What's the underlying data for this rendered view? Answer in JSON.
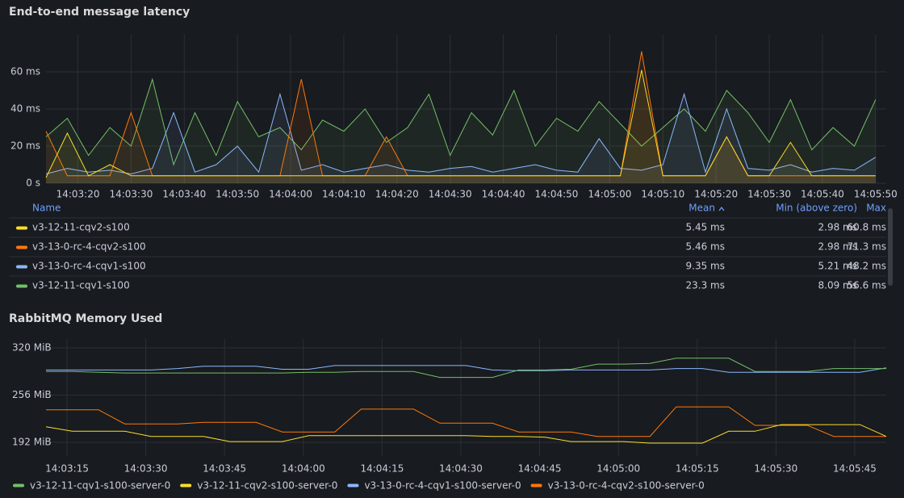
{
  "chart_data": [
    {
      "type": "line",
      "title": "End-to-end message latency",
      "x": [
        "14:03:14",
        "14:03:18",
        "14:03:22",
        "14:03:26",
        "14:03:30",
        "14:03:34",
        "14:03:38",
        "14:03:42",
        "14:03:46",
        "14:03:50",
        "14:03:54",
        "14:03:58",
        "14:04:02",
        "14:04:06",
        "14:04:10",
        "14:04:14",
        "14:04:18",
        "14:04:22",
        "14:04:26",
        "14:04:30",
        "14:04:34",
        "14:04:38",
        "14:04:42",
        "14:04:46",
        "14:04:50",
        "14:04:54",
        "14:04:58",
        "14:05:02",
        "14:05:06",
        "14:05:10",
        "14:05:14",
        "14:05:18",
        "14:05:22",
        "14:05:26",
        "14:05:30",
        "14:05:34",
        "14:05:38",
        "14:05:42",
        "14:05:46",
        "14:05:50"
      ],
      "xlim": [
        "14:03:14",
        "14:05:52"
      ],
      "xticks": [
        "14:03:20",
        "14:03:30",
        "14:03:40",
        "14:03:50",
        "14:04:00",
        "14:04:10",
        "14:04:20",
        "14:04:30",
        "14:04:40",
        "14:04:50",
        "14:05:00",
        "14:05:10",
        "14:05:20",
        "14:05:30",
        "14:05:40",
        "14:05:50"
      ],
      "ylim": [
        0,
        80
      ],
      "yticks": [
        {
          "value": 0,
          "label": "0 s"
        },
        {
          "value": 20,
          "label": "20 ms"
        },
        {
          "value": 40,
          "label": "40 ms"
        },
        {
          "value": 60,
          "label": "60 ms"
        }
      ],
      "grid": true,
      "fill": true,
      "legend_columns": [
        "Name",
        "Mean",
        "Min (above zero)",
        "Max"
      ],
      "series": [
        {
          "name": "v3-12-11-cqv2-s100",
          "color": "#fade2a",
          "legend_values": [
            "5.45 ms",
            "2.98 ms",
            "60.8 ms"
          ],
          "values": [
            3,
            27,
            4,
            10,
            4,
            4,
            4,
            4,
            4,
            4,
            4,
            4,
            4,
            4,
            4,
            4,
            4,
            4,
            4,
            4,
            4,
            4,
            4,
            4,
            4,
            4,
            4,
            4,
            61,
            4,
            4,
            4,
            25,
            4,
            4,
            22,
            4,
            4,
            4,
            4
          ]
        },
        {
          "name": "v3-13-0-rc-4-cqv2-s100",
          "color": "#ff780a",
          "legend_values": [
            "5.46 ms",
            "2.98 ms",
            "71.3 ms"
          ],
          "values": [
            28,
            4,
            4,
            4,
            38,
            4,
            4,
            4,
            4,
            4,
            4,
            4,
            56,
            4,
            4,
            4,
            25,
            4,
            4,
            4,
            4,
            4,
            4,
            4,
            4,
            4,
            4,
            4,
            71,
            4,
            4,
            4,
            25,
            4,
            4,
            4,
            4,
            4,
            4,
            4
          ]
        },
        {
          "name": "v3-13-0-rc-4-cqv1-s100",
          "color": "#8ab8ff",
          "legend_values": [
            "9.35 ms",
            "5.21 ms",
            "48.2 ms"
          ],
          "values": [
            5,
            8,
            6,
            7,
            5,
            8,
            38,
            6,
            10,
            20,
            6,
            48,
            7,
            10,
            6,
            8,
            10,
            7,
            6,
            8,
            9,
            6,
            8,
            10,
            7,
            6,
            24,
            8,
            7,
            10,
            48,
            6,
            40,
            8,
            7,
            10,
            6,
            8,
            7,
            14
          ]
        },
        {
          "name": "v3-12-11-cqv1-s100",
          "color": "#73bf69",
          "legend_values": [
            "23.3 ms",
            "8.09 ms",
            "56.6 ms"
          ],
          "values": [
            25,
            35,
            15,
            30,
            20,
            56,
            10,
            38,
            15,
            44,
            25,
            30,
            18,
            34,
            28,
            40,
            22,
            30,
            48,
            15,
            38,
            26,
            50,
            20,
            35,
            28,
            44,
            32,
            20,
            30,
            40,
            28,
            50,
            38,
            22,
            45,
            18,
            30,
            20,
            45
          ]
        }
      ]
    },
    {
      "type": "line",
      "title": "RabbitMQ Memory Used",
      "x": [
        "14:03:11",
        "14:03:16",
        "14:03:21",
        "14:03:26",
        "14:03:31",
        "14:03:36",
        "14:03:41",
        "14:03:46",
        "14:03:51",
        "14:03:56",
        "14:04:01",
        "14:04:06",
        "14:04:11",
        "14:04:16",
        "14:04:21",
        "14:04:26",
        "14:04:31",
        "14:04:36",
        "14:04:41",
        "14:04:46",
        "14:04:51",
        "14:04:56",
        "14:05:01",
        "14:05:06",
        "14:05:11",
        "14:05:16",
        "14:05:21",
        "14:05:26",
        "14:05:31",
        "14:05:36",
        "14:05:41",
        "14:05:46",
        "14:05:51"
      ],
      "xlim": [
        "14:03:11",
        "14:05:51"
      ],
      "xticks": [
        "14:03:15",
        "14:03:30",
        "14:03:45",
        "14:04:00",
        "14:04:15",
        "14:04:30",
        "14:04:45",
        "14:05:00",
        "14:05:15",
        "14:05:30",
        "14:05:45"
      ],
      "ylim": [
        174,
        332
      ],
      "yticks": [
        {
          "value": 192,
          "label": "192 MiB"
        },
        {
          "value": 256,
          "label": "256 MiB"
        },
        {
          "value": 320,
          "label": "320 MiB"
        }
      ],
      "grid": true,
      "fill": false,
      "series": [
        {
          "name": "v3-12-11-cqv1-s100-server-0",
          "color": "#73bf69",
          "values": [
            288,
            288,
            287,
            286,
            286,
            286,
            286,
            286,
            286,
            286,
            287,
            287,
            288,
            288,
            288,
            280,
            280,
            280,
            290,
            290,
            291,
            298,
            298,
            299,
            306,
            306,
            306,
            288,
            288,
            288,
            292,
            292,
            292
          ]
        },
        {
          "name": "v3-12-11-cqv2-s100-server-0",
          "color": "#fade2a",
          "values": [
            213,
            207,
            207,
            207,
            200,
            200,
            200,
            193,
            193,
            193,
            201,
            201,
            201,
            201,
            201,
            201,
            201,
            200,
            200,
            199,
            193,
            193,
            193,
            191,
            191,
            191,
            207,
            207,
            216,
            216,
            216,
            216,
            200
          ]
        },
        {
          "name": "v3-13-0-rc-4-cqv1-s100-server-0",
          "color": "#8ab8ff",
          "values": [
            290,
            290,
            290,
            290,
            290,
            292,
            295,
            295,
            295,
            291,
            291,
            296,
            296,
            296,
            296,
            296,
            296,
            290,
            289,
            289,
            290,
            290,
            290,
            290,
            292,
            292,
            287,
            287,
            287,
            287,
            287,
            287,
            293
          ]
        },
        {
          "name": "v3-13-0-rc-4-cqv2-s100-server-0",
          "color": "#ff780a",
          "values": [
            236,
            236,
            236,
            217,
            217,
            217,
            219,
            219,
            219,
            206,
            206,
            206,
            237,
            237,
            237,
            218,
            218,
            218,
            206,
            206,
            206,
            200,
            200,
            200,
            240,
            240,
            240,
            215,
            215,
            215,
            200,
            200,
            200
          ]
        }
      ]
    }
  ]
}
